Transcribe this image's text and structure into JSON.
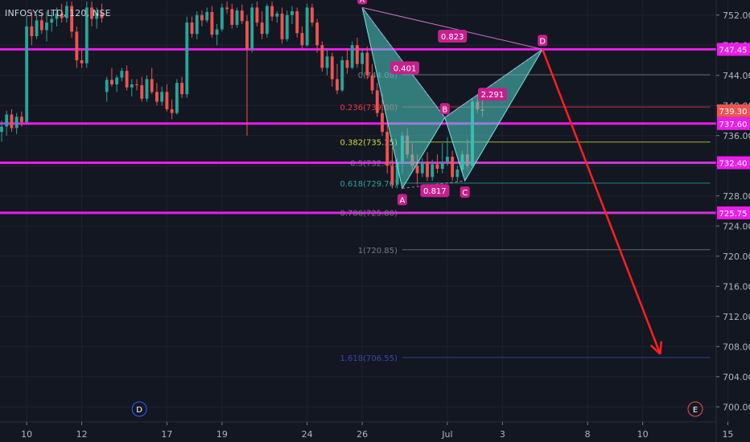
{
  "chart_data": {
    "type": "candlestick",
    "title": "INFOSYS LTD, 120, NSE",
    "colors": {
      "background": "#131722",
      "up": "#26a69a",
      "down": "#ef5350",
      "level": "#e91ee9",
      "pattern_fill": "#4ecdc4",
      "arrow": "#ff2020",
      "point_label_bg": "#c5208d"
    },
    "y_axis": {
      "min": 698,
      "max": 754,
      "ticks": [
        752,
        748,
        744,
        740,
        736,
        732,
        728,
        724,
        720,
        716,
        712,
        708,
        704,
        700
      ],
      "tick_labels": [
        "752.00",
        "748.00",
        "744.00",
        "740.00",
        "736.00",
        "732.00",
        "728.00",
        "724.00",
        "720.00",
        "716.00",
        "712.00",
        "708.00",
        "704.00",
        "700.00"
      ]
    },
    "x_axis": {
      "min": 0,
      "max": 143,
      "ticks": [
        {
          "x": 5,
          "label": "10"
        },
        {
          "x": 16,
          "label": "12"
        },
        {
          "x": 33,
          "label": "17"
        },
        {
          "x": 44,
          "label": "19"
        },
        {
          "x": 61,
          "label": "24"
        },
        {
          "x": 72,
          "label": "26"
        },
        {
          "x": 89,
          "label": "Jul"
        },
        {
          "x": 100,
          "label": "3"
        },
        {
          "x": 117,
          "label": "8"
        },
        {
          "x": 128,
          "label": "10"
        },
        {
          "x": 145,
          "label": "15"
        }
      ]
    },
    "price_tags": [
      {
        "value": 747.45,
        "label": "747.45",
        "color": "#e91ee9"
      },
      {
        "value": 739.3,
        "label": "739.30",
        "color": "#ef5350"
      },
      {
        "value": 737.6,
        "label": "737.60",
        "color": "#e91ee9"
      },
      {
        "value": 732.4,
        "label": "732.40",
        "color": "#e91ee9"
      },
      {
        "value": 725.75,
        "label": "725.75",
        "color": "#e91ee9"
      }
    ],
    "horizontal_levels": [
      747.45,
      737.6,
      732.4,
      725.75
    ],
    "fib_levels": [
      {
        "value": 744.08,
        "label": "0(744.08)",
        "color": "#787b86"
      },
      {
        "value": 739.8,
        "label": "0.236(739.80)",
        "color": "#f23645"
      },
      {
        "value": 735.15,
        "label": "0.382(735.15)",
        "color": "#cddc39"
      },
      {
        "value": 732.4,
        "label": "0.5(732.40)",
        "color": "#787b86"
      },
      {
        "value": 729.7,
        "label": "0.618(729.70)",
        "color": "#26a69a"
      },
      {
        "value": 725.8,
        "label": "0.786(725.80)",
        "color": "#787b86"
      },
      {
        "value": 720.85,
        "label": "1(720.85)",
        "color": "#787b86"
      },
      {
        "value": 706.55,
        "label": "1.618(706.55)",
        "color": "#3949ab"
      }
    ],
    "harmonic_pattern": {
      "points": [
        {
          "name": "X",
          "x": 72,
          "y": 753.0
        },
        {
          "name": "A",
          "x": 80,
          "y": 729.0
        },
        {
          "name": "B",
          "x": 88.5,
          "y": 738.4
        },
        {
          "name": "C",
          "x": 92.5,
          "y": 730.0
        },
        {
          "name": "D",
          "x": 108,
          "y": 747.45
        }
      ],
      "ratios": [
        {
          "label": "0.401",
          "x": 80.5,
          "y": 745.0
        },
        {
          "label": "0.817",
          "x": 86.5,
          "y": 728.7
        },
        {
          "label": "2.291",
          "x": 98.0,
          "y": 741.5
        },
        {
          "label": "0.823",
          "x": 90.0,
          "y": 749.2
        }
      ]
    },
    "forecast_arrow": {
      "from": {
        "x": 108,
        "y": 747.45
      },
      "to": {
        "x": 131.5,
        "y": 707.0
      }
    },
    "time_markers": [
      {
        "label": "D",
        "x": 27.5
      },
      {
        "label": "E",
        "x": 138.5
      }
    ],
    "candles": [
      [
        736.5,
        738.0,
        735.2,
        737.2
      ],
      [
        737.2,
        739.3,
        736.0,
        738.8
      ],
      [
        738.8,
        739.5,
        736.5,
        737.0
      ],
      [
        737.0,
        739.0,
        736.2,
        738.5
      ],
      [
        738.5,
        739.2,
        737.2,
        737.8
      ],
      [
        737.8,
        752.0,
        737.5,
        750.5
      ],
      [
        750.5,
        752.5,
        748.0,
        749.2
      ],
      [
        749.2,
        752.2,
        748.8,
        751.3
      ],
      [
        751.3,
        752.3,
        749.5,
        750.0
      ],
      [
        750.0,
        752.5,
        748.5,
        751.0
      ],
      [
        751.0,
        752.5,
        749.8,
        751.5
      ],
      [
        751.5,
        753.0,
        750.5,
        752.2
      ],
      [
        752.2,
        753.5,
        751.0,
        751.6
      ],
      [
        751.6,
        753.8,
        751.0,
        753.2
      ],
      [
        753.2,
        753.8,
        749.0,
        749.8
      ],
      [
        749.8,
        750.5,
        745.0,
        746.0
      ],
      [
        746.0,
        747.5,
        745.0,
        745.6
      ],
      [
        745.6,
        753.8,
        745.0,
        753.0
      ],
      [
        753.0,
        753.8,
        750.5,
        751.5
      ],
      [
        751.5,
        753.0,
        750.2,
        752.3
      ],
      [
        752.3,
        753.5,
        751.0,
        751.6
      ],
      [
        741.8,
        743.8,
        740.5,
        743.4
      ],
      [
        743.4,
        745.0,
        742.5,
        742.8
      ],
      [
        742.8,
        744.0,
        741.8,
        743.7
      ],
      [
        743.7,
        745.0,
        743.2,
        744.6
      ],
      [
        744.6,
        745.3,
        742.0,
        742.4
      ],
      [
        742.4,
        743.5,
        741.2,
        742.8
      ],
      [
        742.8,
        743.5,
        742.0,
        742.7
      ],
      [
        742.7,
        743.8,
        740.5,
        740.9
      ],
      [
        740.9,
        744.0,
        740.5,
        743.5
      ],
      [
        743.5,
        745.0,
        741.5,
        741.8
      ],
      [
        741.8,
        743.0,
        740.0,
        740.5
      ],
      [
        740.5,
        742.5,
        740.0,
        741.8
      ],
      [
        741.8,
        742.8,
        739.2,
        739.5
      ],
      [
        739.5,
        740.8,
        738.2,
        739.0
      ],
      [
        739.0,
        743.5,
        738.8,
        743.0
      ],
      [
        743.0,
        743.8,
        741.0,
        741.5
      ],
      [
        741.5,
        751.8,
        741.0,
        751.0
      ],
      [
        751.0,
        751.8,
        749.0,
        749.5
      ],
      [
        749.5,
        752.5,
        748.8,
        752.0
      ],
      [
        752.0,
        752.6,
        750.5,
        751.3
      ],
      [
        751.3,
        753.0,
        751.0,
        752.4
      ],
      [
        752.4,
        753.2,
        749.0,
        749.4
      ],
      [
        749.4,
        750.8,
        748.0,
        750.1
      ],
      [
        750.1,
        753.5,
        749.8,
        753.0
      ],
      [
        753.0,
        753.8,
        752.2,
        752.8
      ],
      [
        752.8,
        753.5,
        750.2,
        750.7
      ],
      [
        750.7,
        753.0,
        750.3,
        752.6
      ],
      [
        752.6,
        753.4,
        750.8,
        751.2
      ],
      [
        751.2,
        752.0,
        736.0,
        747.5
      ],
      [
        747.5,
        753.5,
        747.0,
        753.0
      ],
      [
        753.0,
        753.8,
        750.5,
        751.0
      ],
      [
        751.0,
        752.5,
        748.8,
        749.5
      ],
      [
        749.5,
        753.5,
        749.0,
        753.2
      ],
      [
        753.2,
        753.8,
        751.2,
        751.8
      ],
      [
        751.8,
        752.5,
        751.0,
        752.2
      ],
      [
        752.2,
        753.0,
        748.2,
        748.8
      ],
      [
        748.8,
        752.6,
        748.5,
        752.0
      ],
      [
        752.0,
        753.2,
        750.8,
        752.5
      ],
      [
        752.5,
        753.0,
        749.0,
        749.6
      ],
      [
        749.6,
        750.5,
        747.5,
        748.0
      ],
      [
        748.0,
        753.5,
        747.8,
        753.0
      ],
      [
        753.0,
        753.5,
        750.5,
        751.0
      ],
      [
        751.0,
        751.5,
        747.0,
        748.0
      ],
      [
        748.0,
        748.5,
        744.5,
        745.0
      ],
      [
        745.0,
        747.5,
        744.0,
        746.5
      ],
      [
        746.5,
        747.0,
        742.5,
        743.5
      ],
      [
        743.5,
        745.5,
        741.5,
        742.0
      ],
      [
        742.0,
        746.5,
        741.8,
        746.0
      ],
      [
        746.0,
        747.5,
        744.2,
        745.0
      ],
      [
        745.0,
        748.5,
        744.8,
        748.0
      ],
      [
        748.0,
        749.0,
        745.0,
        745.5
      ],
      [
        745.5,
        747.5,
        744.0,
        747.0
      ],
      [
        747.0,
        747.8,
        743.5,
        744.0
      ],
      [
        744.0,
        745.5,
        741.5,
        742.0
      ],
      [
        742.0,
        743.0,
        738.5,
        739.0
      ],
      [
        739.0,
        741.5,
        736.0,
        736.5
      ],
      [
        736.5,
        738.0,
        731.0,
        732.0
      ],
      [
        732.0,
        734.5,
        729.0,
        729.5
      ],
      [
        729.5,
        733.0,
        729.0,
        732.5
      ],
      [
        732.5,
        736.5,
        731.0,
        736.0
      ],
      [
        736.0,
        737.0,
        733.0,
        733.5
      ],
      [
        733.5,
        735.0,
        731.5,
        732.0
      ],
      [
        732.0,
        733.5,
        729.5,
        731.0
      ],
      [
        731.0,
        733.0,
        730.5,
        732.5
      ],
      [
        732.5,
        733.8,
        730.0,
        730.5
      ],
      [
        730.5,
        732.8,
        730.0,
        732.2
      ],
      [
        732.2,
        733.5,
        731.0,
        731.6
      ],
      [
        731.6,
        735.0,
        731.0,
        732.5
      ],
      [
        732.5,
        735.8,
        732.0,
        733.2
      ],
      [
        733.2,
        734.0,
        730.0,
        730.5
      ],
      [
        730.5,
        732.0,
        729.8,
        731.5
      ],
      [
        731.5,
        734.0,
        731.0,
        733.5
      ],
      [
        733.5,
        735.5,
        731.5,
        732.0
      ],
      [
        732.0,
        741.0,
        731.8,
        740.5
      ],
      [
        740.5,
        741.5,
        739.0,
        739.5
      ],
      [
        739.5,
        741.0,
        738.5,
        739.3
      ]
    ]
  }
}
